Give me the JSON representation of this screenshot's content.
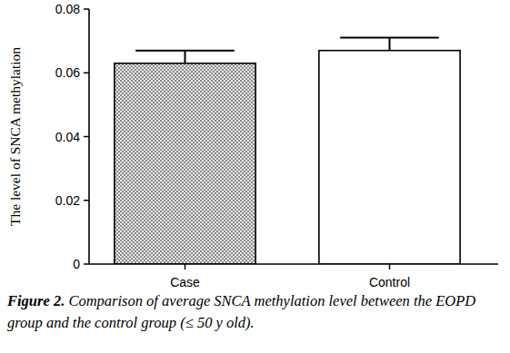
{
  "chart_data": {
    "type": "bar",
    "title": "Figure 2. Comparison of average SNCA methylation level between the EOPD group and the control group (≤ 50 y old).",
    "y_label": "The level of SNCA methylation",
    "categories": [
      "Case",
      "Control"
    ],
    "values": [
      0.063,
      0.067
    ],
    "errors": [
      0.004,
      0.004
    ],
    "colors": [
      "#8c8c8c",
      "#ffffff"
    ],
    "ylim": [
      0,
      0.08
    ],
    "yticks": [
      0,
      0.02,
      0.04,
      0.06,
      0.08
    ],
    "grid": false
  }
}
